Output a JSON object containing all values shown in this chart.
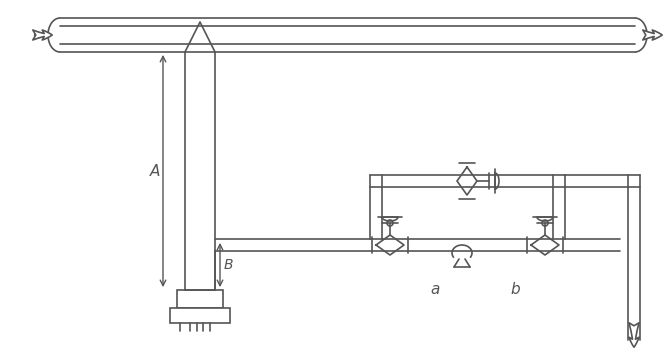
{
  "bg_color": "#ffffff",
  "line_color": "#555555",
  "label_A": "A",
  "label_B": "B",
  "label_a": "a",
  "label_b": "b",
  "figsize": [
    6.69,
    3.54
  ],
  "dpi": 100
}
